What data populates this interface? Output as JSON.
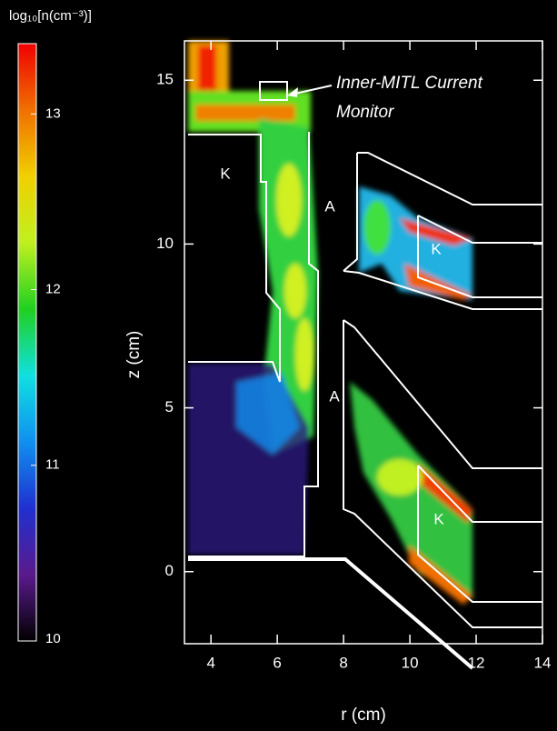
{
  "chart_data": {
    "type": "heatmap",
    "xlabel": "r (cm)",
    "ylabel": "z (cm)",
    "xlim": [
      3.2,
      14
    ],
    "xticks": [
      4,
      6,
      8,
      10,
      12,
      14
    ],
    "ylim": [
      -2.2,
      16.2
    ],
    "yticks": [
      0,
      5,
      10,
      15
    ],
    "colorbar": {
      "label": "log₁₀[n(cm⁻³)]",
      "lim": [
        10,
        13.4
      ],
      "ticks": [
        10,
        11,
        12,
        13
      ],
      "colormap": [
        "#000000",
        "#5a1a8c",
        "#2030d0",
        "#1090f0",
        "#10e0e0",
        "#20d020",
        "#c0f020",
        "#f0d000",
        "#f07000",
        "#f00000"
      ]
    },
    "annotation": [
      "Inner-MITL Current",
      "Monitor"
    ],
    "region_labels": [
      "K",
      "A",
      "K",
      "A",
      "K"
    ]
  }
}
